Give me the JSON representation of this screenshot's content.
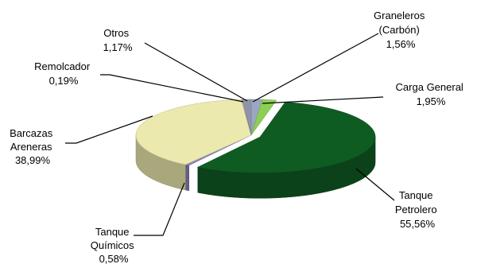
{
  "chart_data": {
    "type": "pie",
    "title": "",
    "style": "3d-exploded-perspective",
    "legend": "none",
    "slices": [
      {
        "name": "Graneleros (Carbón)",
        "value": 1.56,
        "label": "1,56%",
        "color": "#9aa6c2"
      },
      {
        "name": "Carga General",
        "value": 1.95,
        "label": "1,95%",
        "color": "#8ccf53"
      },
      {
        "name": "Tanque Petrolero",
        "value": 55.56,
        "label": "55,56%",
        "color": "#0f5c23"
      },
      {
        "name": "Tanque Químicos",
        "value": 0.58,
        "label": "0,58%",
        "color": "#8c83b8"
      },
      {
        "name": "Barcazas Areneras",
        "value": 38.99,
        "label": "38,99%",
        "color": "#ebe9ad"
      },
      {
        "name": "Remolcador",
        "value": 0.19,
        "label": "0,19%",
        "color": "#b1b1b1"
      },
      {
        "name": "Otros",
        "value": 1.17,
        "label": "1,17%",
        "color": "#8f95a6"
      }
    ],
    "label_lines": [
      [
        "Graneleros",
        "(Carbón)",
        "1,56%"
      ],
      [
        "Carga General",
        "1,95%"
      ],
      [
        "Tanque",
        "Petrolero",
        "55,56%"
      ],
      [
        "Tanque",
        "Químicos",
        "0,58%"
      ],
      [
        "Barcazas",
        "Areneras",
        "38,99%"
      ],
      [
        "Remolcador",
        "0,19%"
      ],
      [
        "Otros",
        "1,17%"
      ]
    ]
  }
}
